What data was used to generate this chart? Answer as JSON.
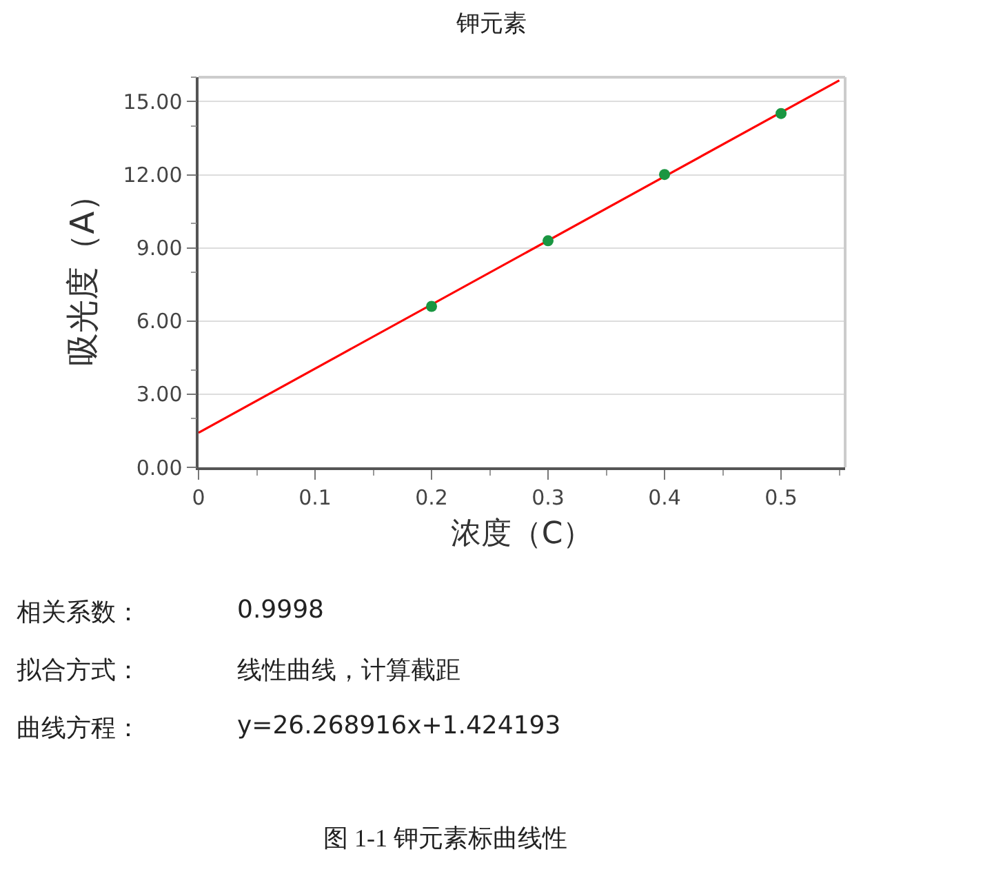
{
  "chart_data": {
    "type": "scatter",
    "title": "钾元素",
    "xlabel": "浓度（C）",
    "ylabel": "吸光度（A）",
    "xlim": [
      0,
      0.555
    ],
    "xticks": [
      0,
      0.1,
      0.2,
      0.3,
      0.4,
      0.5
    ],
    "ylim": [
      0,
      16
    ],
    "yticks": [
      {
        "value": 0,
        "label": "0.00"
      },
      {
        "value": 3,
        "label": "3.00"
      },
      {
        "value": 6,
        "label": "6.00"
      },
      {
        "value": 9,
        "label": "9.00"
      },
      {
        "value": 12,
        "label": "12.00"
      },
      {
        "value": 15,
        "label": "15.00"
      }
    ],
    "grid": "y",
    "series": [
      {
        "marker": "circle",
        "color": "#1a9641",
        "x": [
          0.2,
          0.3,
          0.4,
          0.5
        ],
        "values": [
          6.6,
          9.29,
          12.01,
          14.51
        ]
      },
      {
        "type": "line",
        "marker": "none",
        "color": "#ff0000",
        "x": [
          0,
          0.55
        ],
        "values": [
          1.42,
          15.87
        ]
      }
    ],
    "annotations": [
      "相关系数：",
      "0.9998",
      "拟合方式：",
      "线性曲线，计算截距",
      "曲线方程：",
      "y=26.268916x+1.424193",
      "图 1-1 钾元素标曲线性"
    ]
  }
}
